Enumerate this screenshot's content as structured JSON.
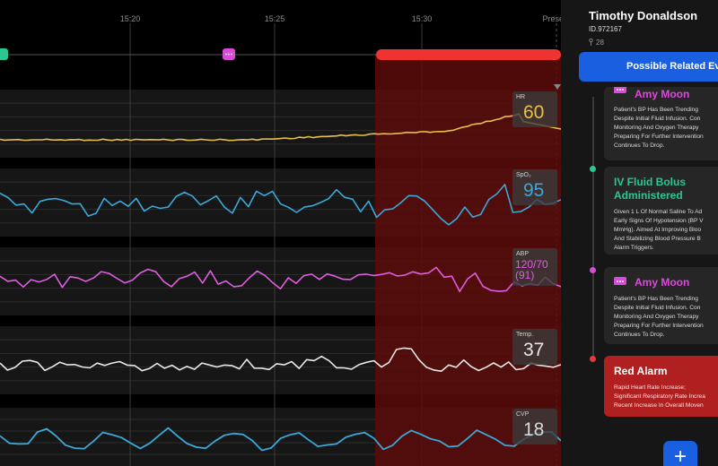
{
  "colors": {
    "hr": "#e6c048",
    "spo2": "#3aa8d8",
    "abp": "#e05ce0",
    "temp": "#e8e8e8",
    "cvp": "#3aa8d8",
    "alarm_region": "#5a0c0a",
    "alarm_bar": "#f03232",
    "accent_blue": "#1a5fe0",
    "event_pink": "#d94ad8",
    "event_green": "#2ac890",
    "event_red": "#e83838"
  },
  "timeline": {
    "time_labels": [
      "15:20",
      "15:25",
      "15:30",
      "Present"
    ]
  },
  "vitals": [
    {
      "key": "hr",
      "label": "HR",
      "value": "60"
    },
    {
      "key": "spo2",
      "label": "SpO₂",
      "value": "95"
    },
    {
      "key": "abp",
      "label": "ABP",
      "value_line1": "120/70",
      "value_line2": "(91)"
    },
    {
      "key": "temp",
      "label": "Temp.",
      "value": "37"
    },
    {
      "key": "cvp",
      "label": "CVP",
      "value": "18"
    }
  ],
  "patient": {
    "name": "Timothy Donaldson",
    "id": "ID.972167",
    "age": "28"
  },
  "panel": {
    "related_button": "Possible Related Ev",
    "add_button": "+"
  },
  "events": [
    {
      "type": "note",
      "author": "Amy Moon",
      "body": [
        "Patient's BP Has Been Trending",
        "Despite Initial Fluid Infusion. Con",
        "Monitoring And Oxygen Therapy",
        "Preparing For Further Intervention",
        "Continues To Drop."
      ]
    },
    {
      "type": "intervention",
      "title": [
        "IV Fluid Bolus",
        "Administered"
      ],
      "body": [
        "Given 1 L Of Normal Saline To Ad",
        "Early Signs Of Hypotension (BP V",
        "MmHg). Aimed At Improving Bloo",
        "And Stabilizing Blood Pressure B",
        "Alarm Triggers."
      ]
    },
    {
      "type": "note",
      "author": "Amy Moon",
      "body": [
        "Patient's BP Has Been Trending",
        "Despite Initial Fluid Infusion. Con",
        "Monitoring And Oxygen Therapy",
        "Preparing For Further Intervention",
        "Continues To Drop."
      ]
    },
    {
      "type": "alarm",
      "title": "Red Alarm",
      "body": [
        "Rapid Heart Rate Increase;",
        "Significant Respiratory Rate Increa",
        "Recent Increase In Overall Moven"
      ]
    }
  ]
}
